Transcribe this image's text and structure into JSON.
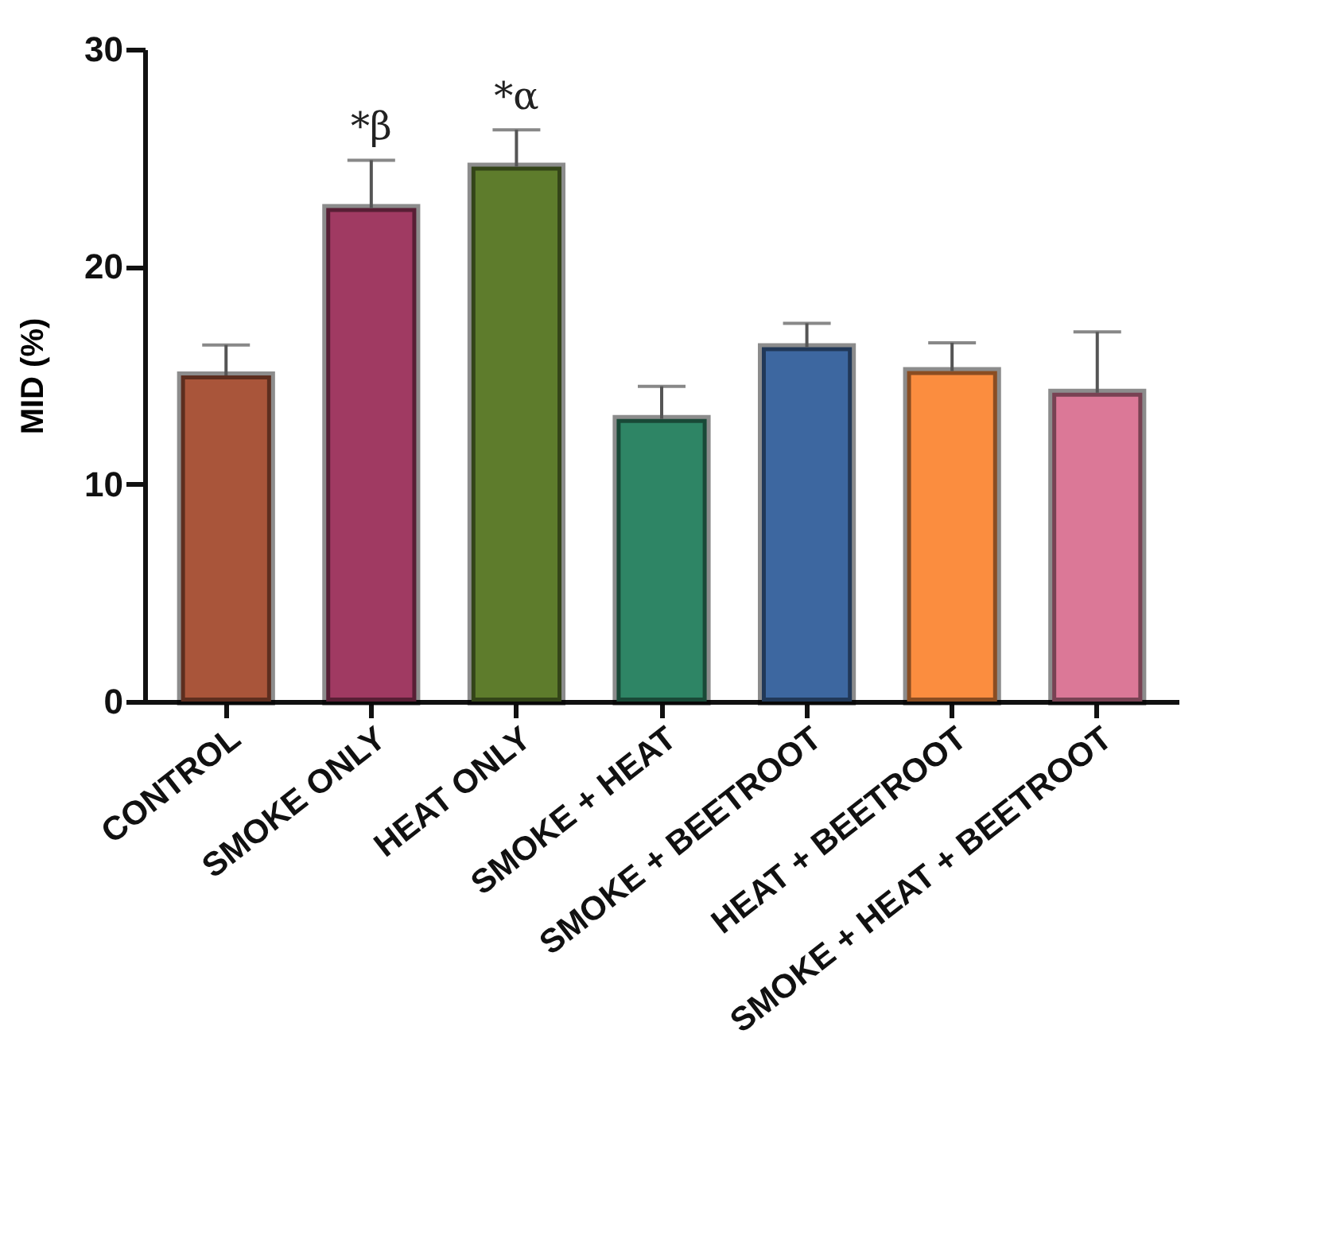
{
  "chart_data": {
    "type": "bar",
    "ylabel": "MID (%)",
    "categories": [
      "CONTROL",
      "SMOKE ONLY",
      "HEAT ONLY",
      "SMOKE + HEAT",
      "SMOKE + BEETROOT",
      "HEAT + BEETROOT",
      "SMOKE + HEAT + BEETROOT"
    ],
    "values": [
      15.0,
      22.7,
      24.6,
      13.0,
      16.3,
      15.2,
      14.2
    ],
    "errors": [
      [
        15.0,
        16.4
      ],
      [
        22.7,
        24.9
      ],
      [
        24.6,
        26.3
      ],
      [
        13.0,
        14.5
      ],
      [
        16.3,
        17.4
      ],
      [
        15.2,
        16.5
      ],
      [
        14.2,
        17.0
      ]
    ],
    "colors": [
      "#a9553a",
      "#a03a62",
      "#5e7c2c",
      "#2e8565",
      "#3d67a0",
      "#fb8d3f",
      "#db7897"
    ],
    "ylim": [
      0,
      30
    ],
    "yticks": [
      0,
      10,
      20,
      30
    ],
    "grid": false,
    "legend": false,
    "annotations": [
      {
        "text": "*β",
        "x": "SMOKE ONLY",
        "y": 24.9
      },
      {
        "text": "*α",
        "x": "HEAT ONLY",
        "y": 26.3
      }
    ]
  }
}
